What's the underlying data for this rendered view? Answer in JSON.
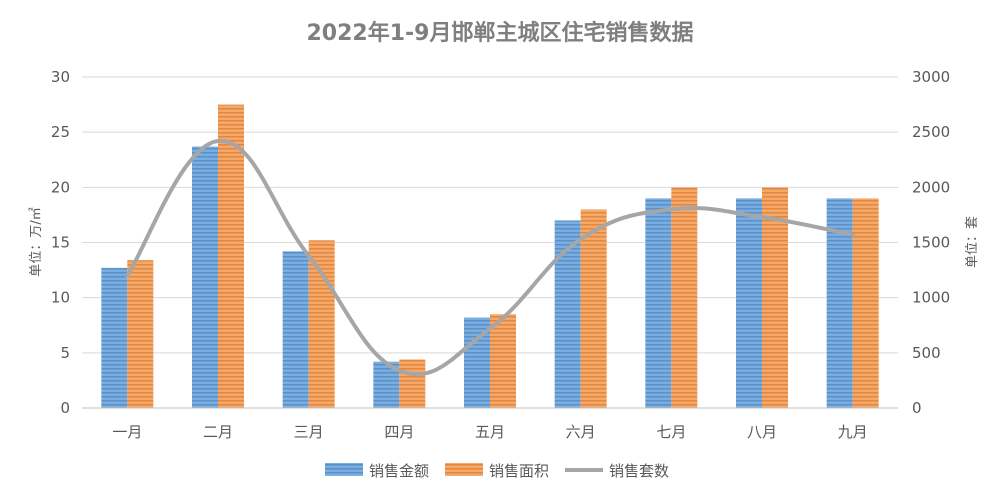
{
  "chart_data": {
    "type": "bar",
    "title": "2022年1-9月邯郸主城区住宅销售数据",
    "categories": [
      "一月",
      "二月",
      "三月",
      "四月",
      "五月",
      "六月",
      "七月",
      "八月",
      "九月"
    ],
    "ylabel": "单位：万/㎡",
    "y2label": "单位：套",
    "ylim": [
      0,
      30
    ],
    "y2lim": [
      0,
      3000
    ],
    "yticks": [
      "0",
      "5",
      "10",
      "15",
      "20",
      "25",
      "30"
    ],
    "y2ticks": [
      "0",
      "500",
      "1000",
      "1500",
      "2000",
      "2500",
      "3000"
    ],
    "grid": true,
    "legend_position": "bottom",
    "series": [
      {
        "name": "销售金额",
        "type": "bar",
        "axis": "left",
        "values": [
          12.7,
          23.7,
          14.2,
          4.2,
          8.2,
          17.0,
          19.0,
          19.0,
          19.0
        ]
      },
      {
        "name": "销售面积",
        "type": "bar",
        "axis": "left",
        "values": [
          13.4,
          27.5,
          15.2,
          4.4,
          8.5,
          18.0,
          20.0,
          20.0,
          19.0
        ]
      },
      {
        "name": "销售套数",
        "type": "line",
        "axis": "right",
        "values": [
          1200,
          2420,
          1380,
          340,
          720,
          1530,
          1800,
          1730,
          1570
        ]
      }
    ],
    "colors": {
      "bar1": "#6a9fd6",
      "bar2": "#ef9a55",
      "line": "#a6a6a6",
      "grid": "#d9d9d9"
    }
  }
}
